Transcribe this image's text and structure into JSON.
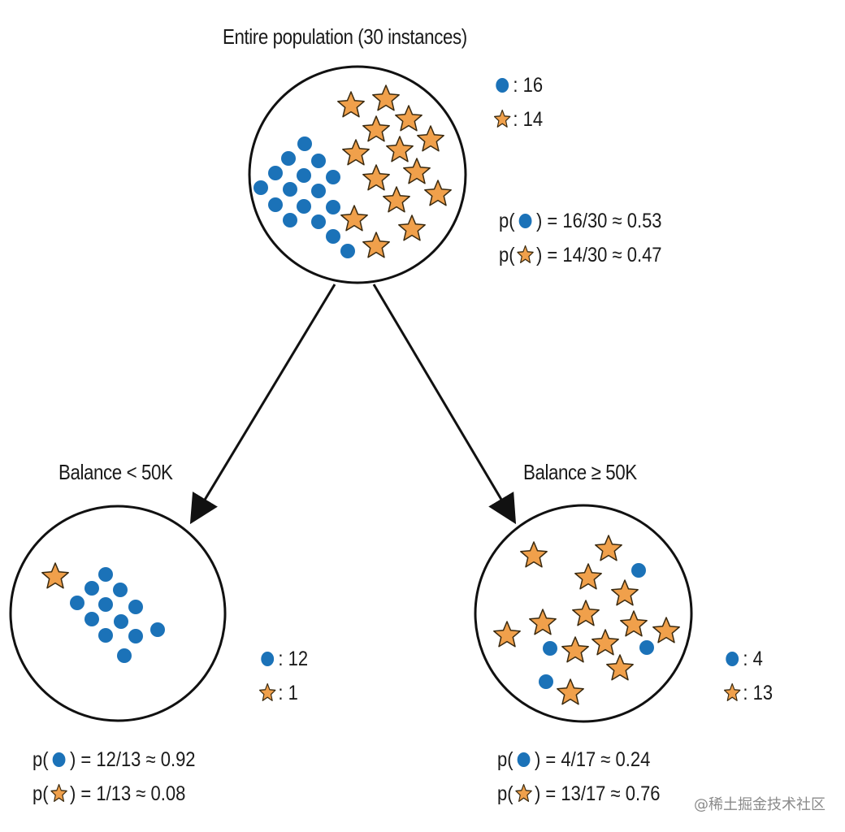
{
  "root": {
    "title": "Entire population (30 instances)",
    "count_dot": ": 16",
    "count_star": ": 14",
    "p_dot_prefix": "p(",
    "p_dot_suffix": ") = 16/30 ≈ 0.53",
    "p_star_prefix": "p(",
    "p_star_suffix": ") = 14/30 ≈ 0.47"
  },
  "left": {
    "title": "Balance < 50K",
    "count_dot": ": 12",
    "count_star": ": 1",
    "p_dot_prefix": "p(",
    "p_dot_suffix": ") = 12/13 ≈ 0.92",
    "p_star_prefix": "p(",
    "p_star_suffix": ") = 1/13 ≈ 0.08"
  },
  "right": {
    "title": "Balance ≥ 50K",
    "count_dot": ": 4",
    "count_star": ": 13",
    "p_dot_prefix": "p(",
    "p_dot_suffix": ") = 4/17 ≈ 0.24",
    "p_star_prefix": "p(",
    "p_star_suffix": ") = 13/17 ≈ 0.76"
  },
  "watermark": "@稀土掘金技术社区",
  "colors": {
    "dot": "#1b72b8",
    "star_fill": "#f0a04b",
    "star_stroke": "#3a2a10",
    "outline": "#111111"
  },
  "icons": {
    "dot": "blue-circle",
    "star": "orange-star",
    "arrow": "arrow-down"
  }
}
